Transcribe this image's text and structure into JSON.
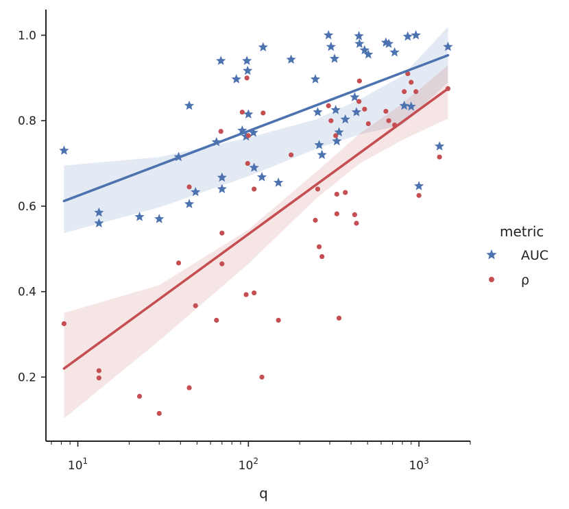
{
  "chart_data": {
    "type": "scatter",
    "title": "",
    "xlabel": "q",
    "ylabel": "",
    "x_scale": "log",
    "xlim": [
      6.5,
      2000
    ],
    "ylim": [
      0.05,
      1.06
    ],
    "x_tick_labels": [
      {
        "value": 10,
        "base": "10",
        "exp": "1"
      },
      {
        "value": 100,
        "base": "10",
        "exp": "2"
      },
      {
        "value": 1000,
        "base": "10",
        "exp": "3"
      }
    ],
    "y_ticks": [
      0.2,
      0.4,
      0.6,
      0.8,
      1.0
    ],
    "y_tick_labels": [
      "0.2",
      "0.4",
      "0.6",
      "0.8",
      "1.0"
    ],
    "grid": false,
    "legend": {
      "title": "metric",
      "placement": "right",
      "entries": [
        "AUC",
        "ρ"
      ]
    },
    "series": [
      {
        "name": "AUC",
        "color": "#4c72b0",
        "marker": "star",
        "points": [
          [
            8.3,
            0.73
          ],
          [
            13.3,
            0.585
          ],
          [
            13.3,
            0.56
          ],
          [
            23,
            0.575
          ],
          [
            30,
            0.57
          ],
          [
            39,
            0.715
          ],
          [
            45,
            0.835
          ],
          [
            45,
            0.605
          ],
          [
            49,
            0.633
          ],
          [
            65,
            0.75
          ],
          [
            69,
            0.94
          ],
          [
            70,
            0.667
          ],
          [
            70,
            0.64
          ],
          [
            85,
            0.897
          ],
          [
            92,
            0.777
          ],
          [
            97,
            0.763
          ],
          [
            98,
            0.94
          ],
          [
            99,
            0.917
          ],
          [
            100,
            0.815
          ],
          [
            107,
            0.772
          ],
          [
            108,
            0.69
          ],
          [
            120,
            0.668
          ],
          [
            122,
            0.972
          ],
          [
            150,
            0.655
          ],
          [
            178,
            0.943
          ],
          [
            247,
            0.897
          ],
          [
            255,
            0.82
          ],
          [
            260,
            0.743
          ],
          [
            270,
            0.72
          ],
          [
            295,
            1.0
          ],
          [
            305,
            0.973
          ],
          [
            320,
            0.945
          ],
          [
            325,
            0.825
          ],
          [
            330,
            0.752
          ],
          [
            340,
            0.773
          ],
          [
            370,
            0.803
          ],
          [
            420,
            0.855
          ],
          [
            430,
            0.82
          ],
          [
            445,
            0.998
          ],
          [
            448,
            0.98
          ],
          [
            480,
            0.965
          ],
          [
            505,
            0.955
          ],
          [
            640,
            0.983
          ],
          [
            665,
            0.98
          ],
          [
            720,
            0.96
          ],
          [
            820,
            0.835
          ],
          [
            860,
            0.997
          ],
          [
            900,
            0.833
          ],
          [
            960,
            1.0
          ],
          [
            1000,
            0.647
          ],
          [
            1320,
            0.74
          ],
          [
            1480,
            0.973
          ]
        ],
        "trend": [
          [
            8.3,
            0.612
          ],
          [
            1480,
            0.953
          ]
        ],
        "ci_low": [
          [
            8.3,
            0.537
          ],
          [
            30,
            0.597
          ],
          [
            100,
            0.67
          ],
          [
            250,
            0.734
          ],
          [
            450,
            0.768
          ],
          [
            800,
            0.79
          ],
          [
            1480,
            0.89
          ]
        ],
        "ci_high": [
          [
            8.3,
            0.695
          ],
          [
            30,
            0.715
          ],
          [
            100,
            0.76
          ],
          [
            250,
            0.803
          ],
          [
            450,
            0.85
          ],
          [
            800,
            0.905
          ],
          [
            1480,
            1.02
          ]
        ]
      },
      {
        "name": "ρ",
        "color": "#c44e52",
        "marker": "circle",
        "points": [
          [
            8.3,
            0.325
          ],
          [
            13.3,
            0.215
          ],
          [
            13.3,
            0.198
          ],
          [
            23,
            0.155
          ],
          [
            30,
            0.115
          ],
          [
            39,
            0.467
          ],
          [
            45,
            0.645
          ],
          [
            45,
            0.175
          ],
          [
            49,
            0.367
          ],
          [
            65,
            0.333
          ],
          [
            69,
            0.775
          ],
          [
            70,
            0.537
          ],
          [
            70,
            0.465
          ],
          [
            92,
            0.82
          ],
          [
            97,
            0.393
          ],
          [
            98,
            0.9
          ],
          [
            99,
            0.7
          ],
          [
            100,
            0.765
          ],
          [
            108,
            0.397
          ],
          [
            108,
            0.64
          ],
          [
            120,
            0.2
          ],
          [
            122,
            0.818
          ],
          [
            150,
            0.333
          ],
          [
            178,
            0.72
          ],
          [
            247,
            0.567
          ],
          [
            255,
            0.64
          ],
          [
            260,
            0.505
          ],
          [
            270,
            0.482
          ],
          [
            295,
            0.835
          ],
          [
            305,
            0.8
          ],
          [
            325,
            0.765
          ],
          [
            330,
            0.628
          ],
          [
            330,
            0.582
          ],
          [
            340,
            0.338
          ],
          [
            370,
            0.632
          ],
          [
            420,
            0.58
          ],
          [
            430,
            0.56
          ],
          [
            445,
            0.845
          ],
          [
            448,
            0.893
          ],
          [
            480,
            0.827
          ],
          [
            505,
            0.793
          ],
          [
            640,
            0.822
          ],
          [
            665,
            0.8
          ],
          [
            720,
            0.79
          ],
          [
            820,
            0.868
          ],
          [
            860,
            0.91
          ],
          [
            900,
            0.89
          ],
          [
            960,
            0.868
          ],
          [
            1000,
            0.625
          ],
          [
            1320,
            0.715
          ],
          [
            1480,
            0.875
          ]
        ],
        "trend": [
          [
            8.3,
            0.22
          ],
          [
            1480,
            0.875
          ]
        ],
        "ci_low": [
          [
            8.3,
            0.103
          ],
          [
            30,
            0.285
          ],
          [
            100,
            0.465
          ],
          [
            250,
            0.618
          ],
          [
            450,
            0.7
          ],
          [
            800,
            0.755
          ],
          [
            1480,
            0.805
          ]
        ],
        "ci_high": [
          [
            8.3,
            0.35
          ],
          [
            30,
            0.415
          ],
          [
            100,
            0.545
          ],
          [
            250,
            0.68
          ],
          [
            450,
            0.77
          ],
          [
            800,
            0.84
          ],
          [
            1480,
            0.93
          ]
        ]
      }
    ]
  }
}
